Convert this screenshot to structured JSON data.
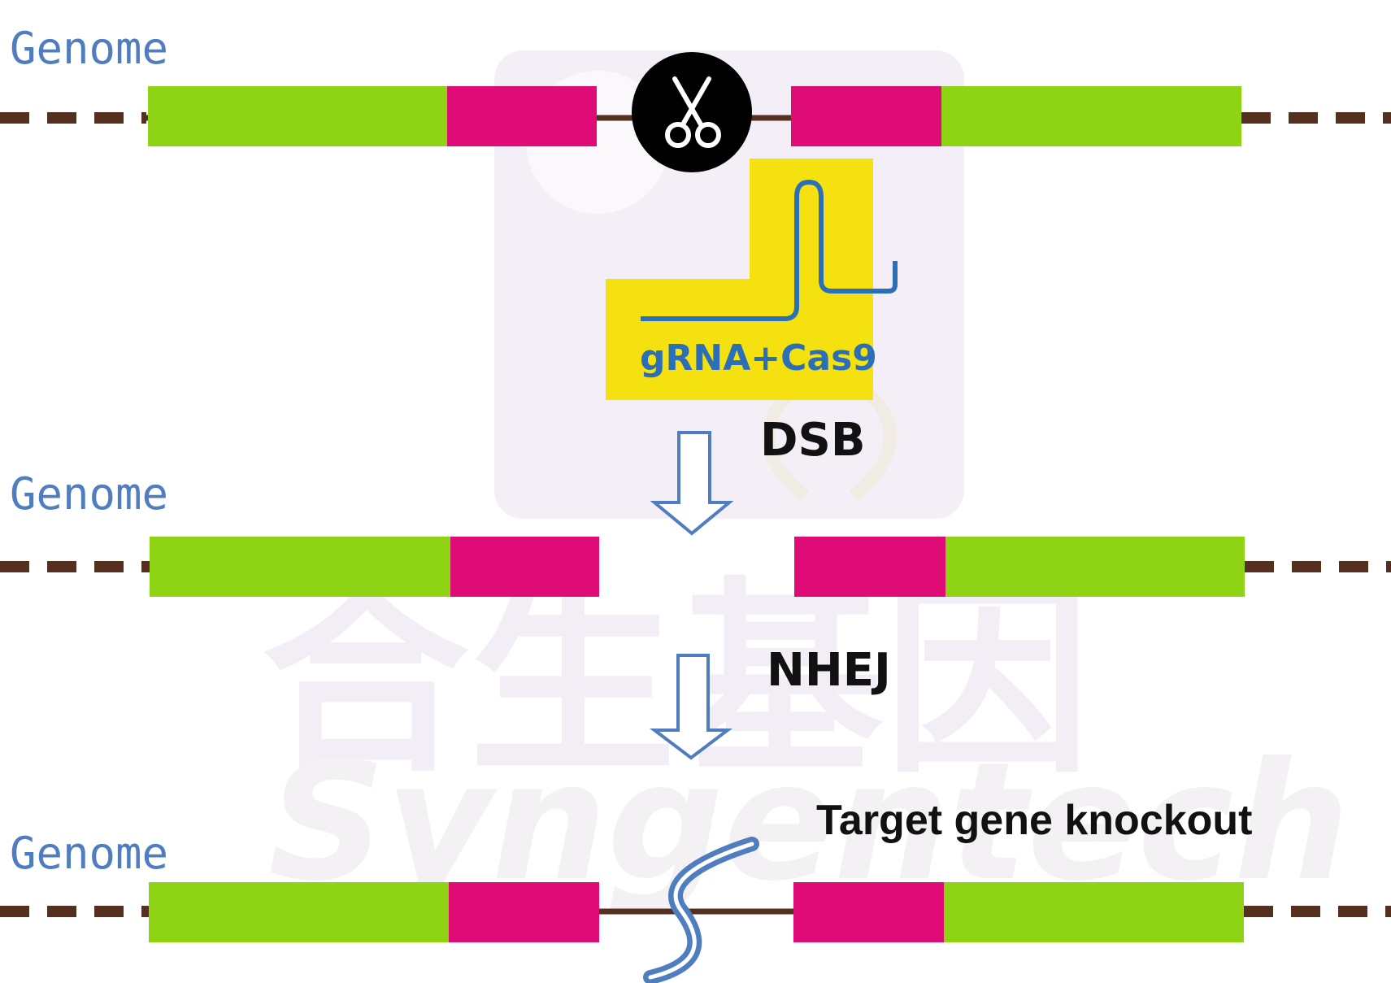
{
  "genome_labels": [
    "Genome",
    "Genome",
    "Genome"
  ],
  "tool": {
    "label": "gRNA+Cas9"
  },
  "steps": {
    "dsb": "DSB",
    "nhej": "NHEJ"
  },
  "result": {
    "label": "Target gene knockout"
  },
  "watermark": {
    "chinese": "合生基因",
    "english": "Syngentech"
  },
  "icons": {
    "cut": "scissors-icon"
  },
  "colors": {
    "exon_green": "#8fd414",
    "target_magenta": "#df0b76",
    "backbone_brown": "#55301f",
    "grna_yellow": "#f5e10f",
    "grna_blue": "#2a6fb8",
    "label_blue": "#4f7dbf",
    "arrow_blue": "#4f7dbf"
  }
}
